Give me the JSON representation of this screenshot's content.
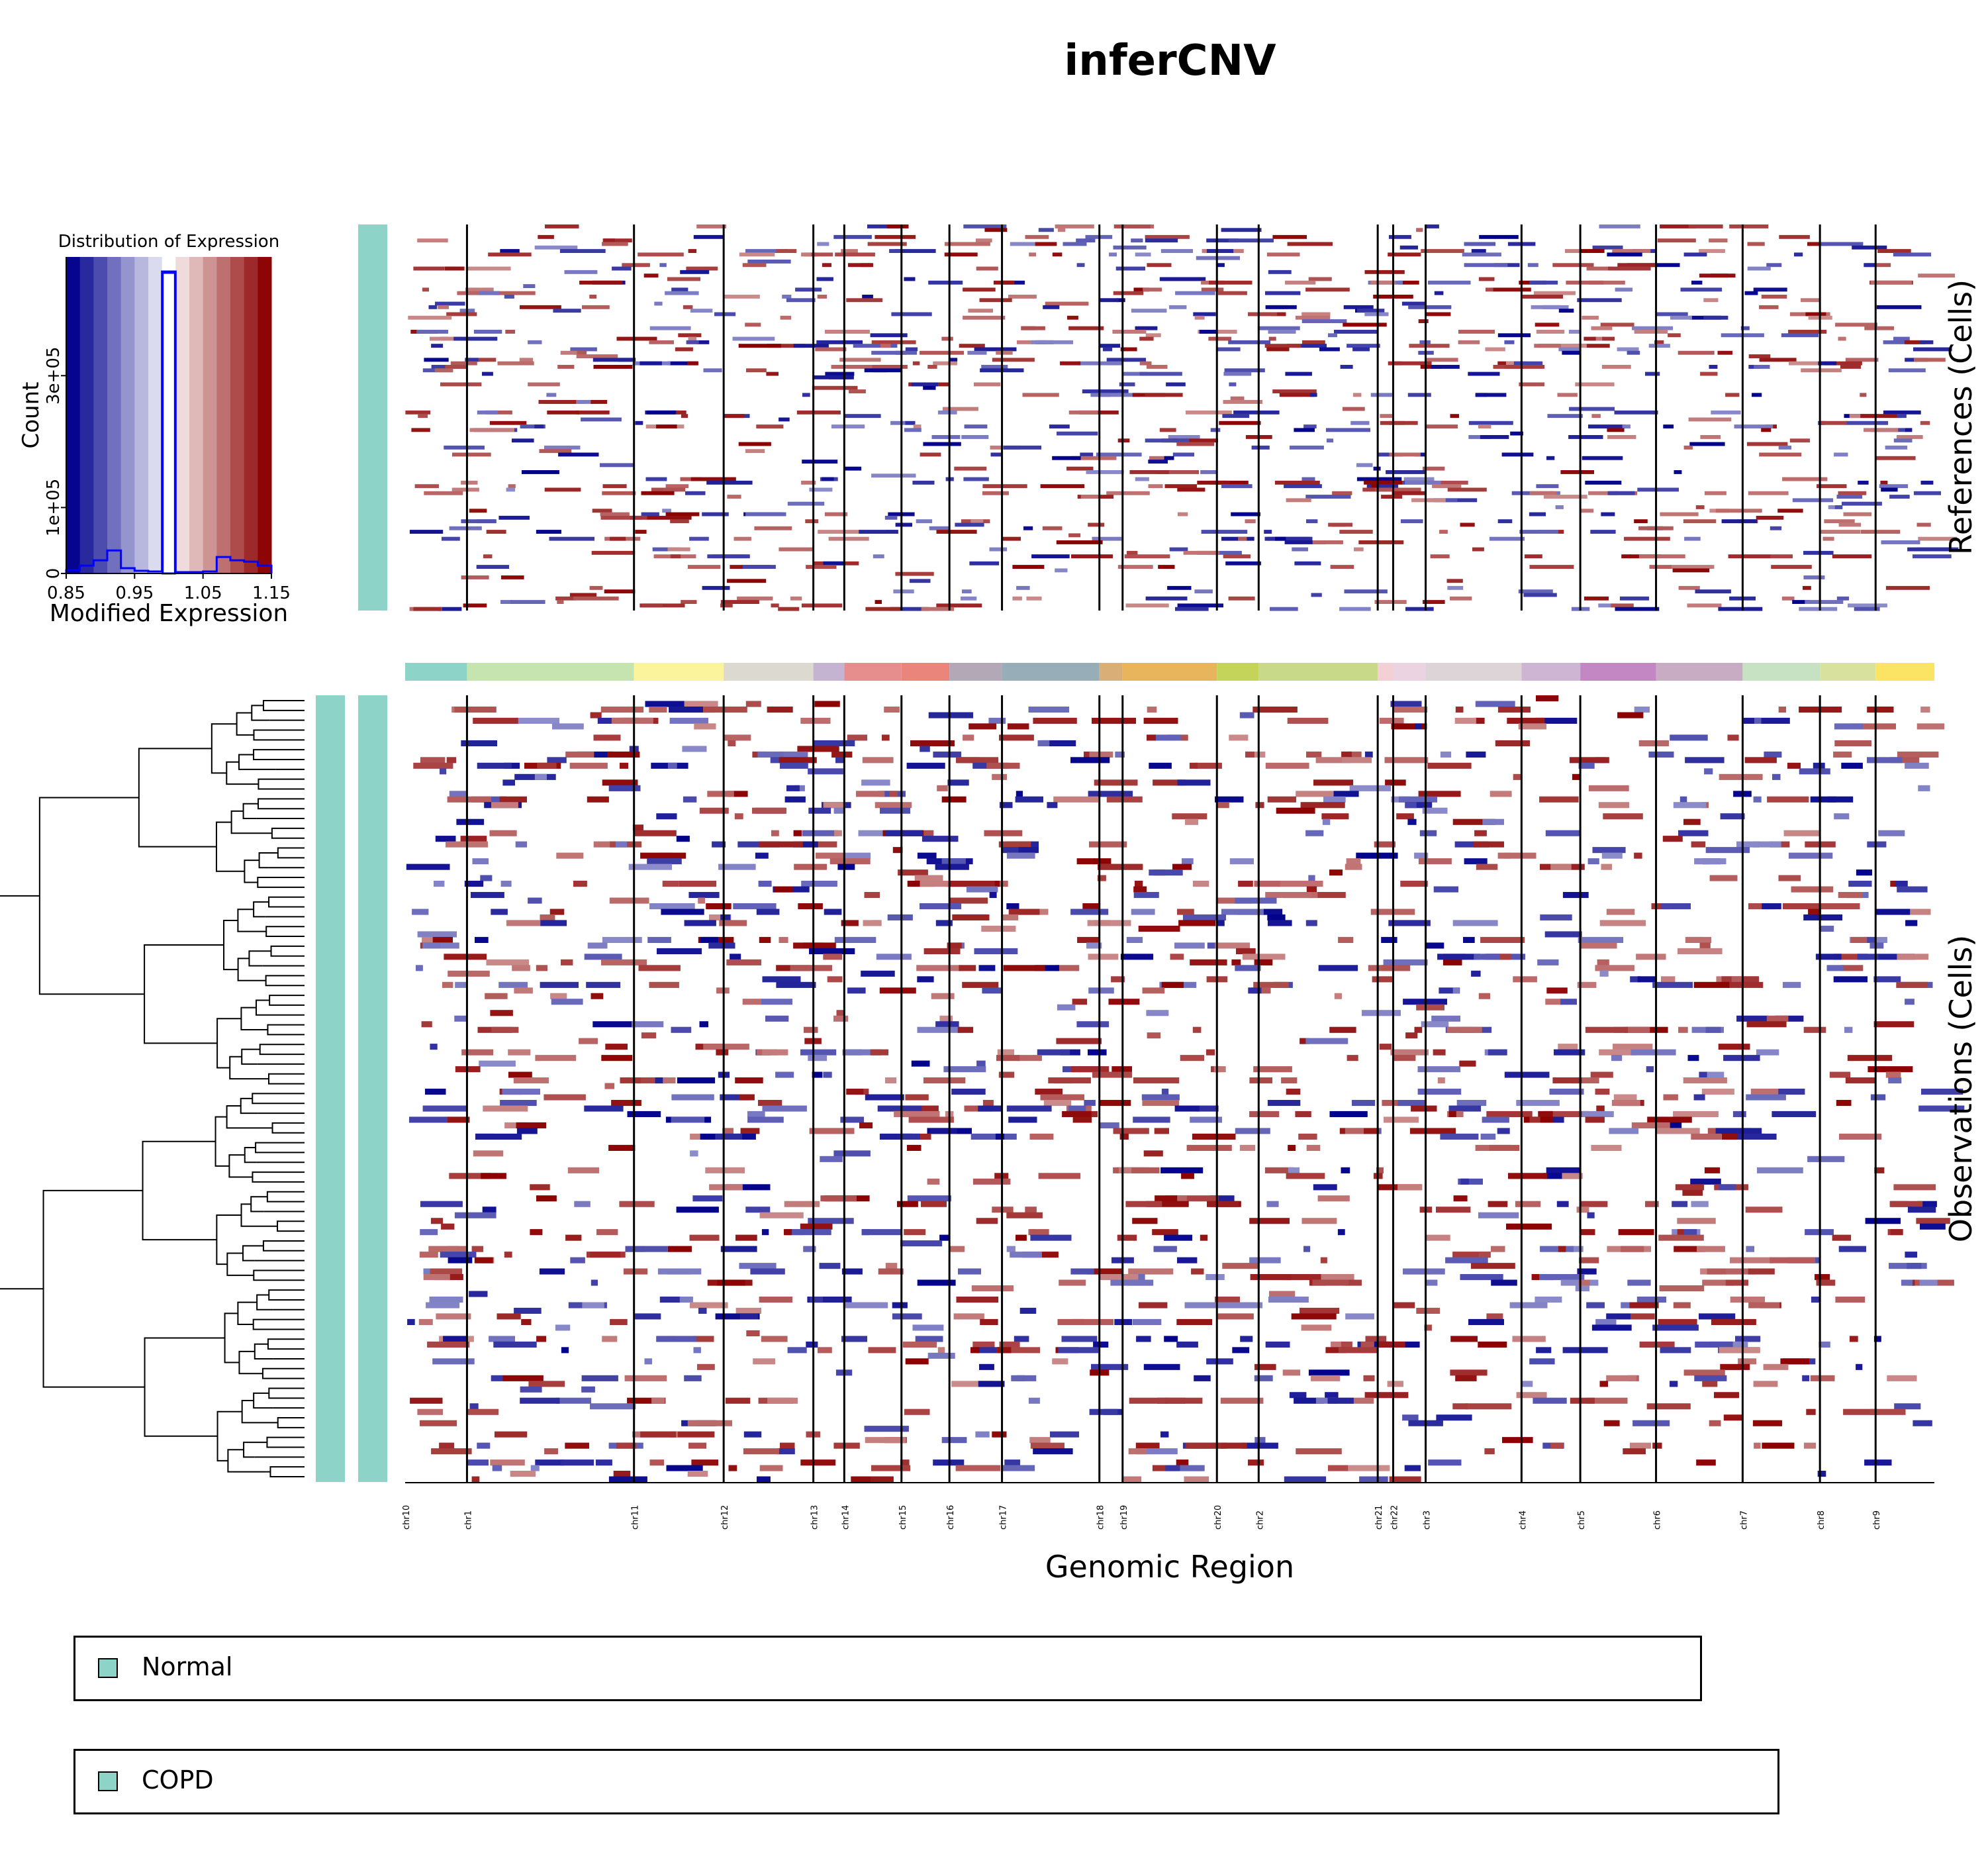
{
  "title": "inferCNV",
  "chart_data": {
    "type": "heatmap",
    "title": "inferCNV",
    "xlabel": "Genomic Region",
    "references_label": "References (Cells)",
    "observations_label": "Observations (Cells)",
    "chromosomes": [
      "chr10",
      "chr1",
      "chr11",
      "chr12",
      "chr13",
      "chr14",
      "chr15",
      "chr16",
      "chr17",
      "chr18",
      "chr19",
      "chr20",
      "chr2",
      "chr21",
      "chr22",
      "chr3",
      "chr4",
      "chr5",
      "chr6",
      "chr7",
      "chr8",
      "chr9"
    ],
    "chromosome_relative_widths": [
      0.04,
      0.108,
      0.058,
      0.058,
      0.02,
      0.037,
      0.031,
      0.034,
      0.063,
      0.015,
      0.061,
      0.027,
      0.077,
      0.01,
      0.021,
      0.062,
      0.038,
      0.049,
      0.056,
      0.05,
      0.036,
      0.038
    ],
    "chromosome_colors": [
      "#8dd3c7",
      "#c6e4b0",
      "#fbf49d",
      "#dcdad0",
      "#c5b3d2",
      "#e68e8e",
      "#e9857b",
      "#b3a9b6",
      "#97adb8",
      "#d9ae77",
      "#e8b45c",
      "#c4d45a",
      "#c8d98a",
      "#f2d0d6",
      "#ecd3e2",
      "#dcd4d6",
      "#cfb5d4",
      "#c388c4",
      "#c8acc4",
      "#c6e2c3",
      "#d8e29e",
      "#fbe363"
    ],
    "color_scale": {
      "min": 0.85,
      "max": 1.15,
      "low_color": "#00008b",
      "mid_color": "#ffffff",
      "high_color": "#8b0000"
    },
    "histogram": {
      "title": "Distribution of Expression",
      "xlabel": "Modified Expression",
      "ylabel": "Count",
      "x_ticks": [
        "0.85",
        "0.95",
        "1.05",
        "1.15"
      ],
      "y_ticks": [
        "0",
        "1e+05",
        "3e+05"
      ],
      "bins": [
        [
          0.85,
          0.87,
          5000
        ],
        [
          0.87,
          0.89,
          12000
        ],
        [
          0.89,
          0.91,
          20000
        ],
        [
          0.91,
          0.93,
          35000
        ],
        [
          0.93,
          0.95,
          8000
        ],
        [
          0.95,
          0.97,
          4000
        ],
        [
          0.97,
          0.99,
          3000
        ],
        [
          0.99,
          1.01,
          458000
        ],
        [
          1.01,
          1.03,
          2000
        ],
        [
          1.03,
          1.05,
          2000
        ],
        [
          1.05,
          1.07,
          3000
        ],
        [
          1.07,
          1.09,
          25000
        ],
        [
          1.09,
          1.11,
          20000
        ],
        [
          1.11,
          1.13,
          18000
        ],
        [
          1.13,
          1.15,
          12000
        ]
      ],
      "y_max": 460000
    },
    "annotation_groups": [
      {
        "name": "Normal",
        "color": "#8dd3c7"
      },
      {
        "name": "COPD",
        "color": "#8dd3c7"
      }
    ]
  },
  "legend": {
    "items": [
      {
        "label": "Normal",
        "color": "#8dd3c7"
      },
      {
        "label": "COPD",
        "color": "#8dd3c7"
      }
    ]
  }
}
